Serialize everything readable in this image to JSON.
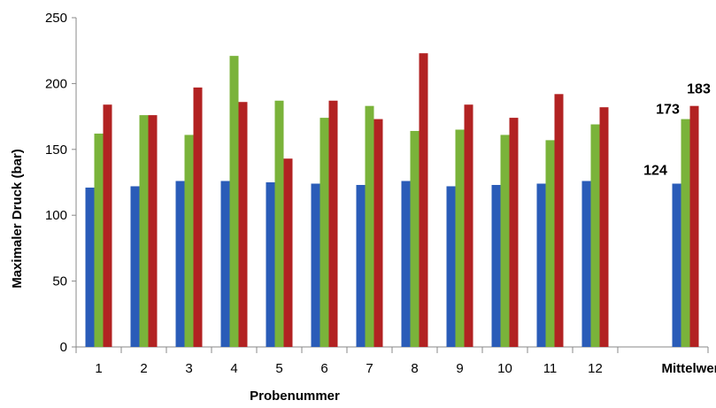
{
  "chart_data": {
    "type": "bar",
    "categories": [
      "1",
      "2",
      "3",
      "4",
      "5",
      "6",
      "7",
      "8",
      "9",
      "10",
      "11",
      "12",
      "",
      "Mittelwert"
    ],
    "series": [
      {
        "color": "#2a5cb8",
        "values": [
          121,
          122,
          126,
          126,
          125,
          124,
          123,
          126,
          122,
          123,
          124,
          126,
          null,
          124
        ]
      },
      {
        "color": "#7ab33a",
        "values": [
          162,
          176,
          161,
          221,
          187,
          174,
          183,
          164,
          165,
          161,
          157,
          169,
          null,
          173
        ]
      },
      {
        "color": "#b22222",
        "values": [
          184,
          176,
          197,
          186,
          143,
          187,
          173,
          223,
          184,
          174,
          192,
          182,
          null,
          183
        ]
      }
    ],
    "data_labels": [
      "124",
      "173",
      "183"
    ],
    "xlabel": "Probenummer",
    "ylabel": "Maximaler Druck (bar)",
    "ylim": [
      0,
      250
    ],
    "yticks": [
      "0",
      "50",
      "100",
      "150",
      "200",
      "250"
    ],
    "grid": false,
    "legend": "none"
  }
}
